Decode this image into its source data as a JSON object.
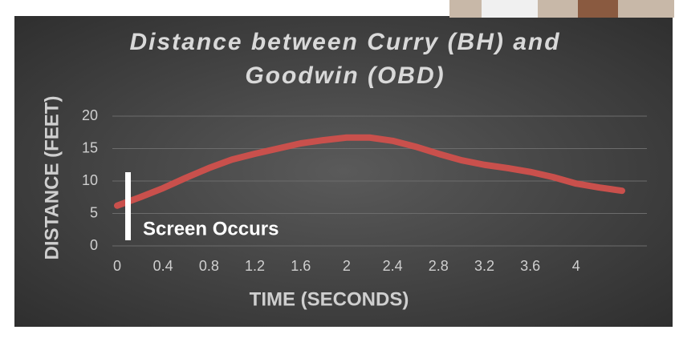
{
  "chart_data": {
    "type": "line",
    "title": "Distance between Curry (BH) and Goodwin (OBD)",
    "x_label": "TIME (SECONDS)",
    "y_label": "DISTANCE (FEET)",
    "annotation": "Screen Occurs",
    "x": [
      0,
      0.2,
      0.4,
      0.6,
      0.8,
      1.0,
      1.2,
      1.4,
      1.6,
      1.8,
      2.0,
      2.2,
      2.4,
      2.6,
      2.8,
      3.0,
      3.2,
      3.4,
      3.6,
      3.8,
      4.0,
      4.2,
      4.4
    ],
    "series": [
      {
        "color": "#c9504c",
        "values": [
          6.2,
          7.5,
          8.9,
          10.5,
          12,
          13.3,
          14.2,
          15,
          15.8,
          16.3,
          16.7,
          16.7,
          16.2,
          15.3,
          14.2,
          13.2,
          12.5,
          12,
          11.4,
          10.6,
          9.6,
          9,
          8.5
        ]
      }
    ],
    "xlim": [
      0,
      4.4
    ],
    "xticks": [
      0,
      0.4,
      0.8,
      1.2,
      1.6,
      2,
      2.4,
      2.8,
      3.2,
      3.6,
      4
    ],
    "ylim": [
      0,
      20
    ],
    "yticks": [
      0,
      5,
      10,
      15,
      20
    ],
    "grid": true
  }
}
